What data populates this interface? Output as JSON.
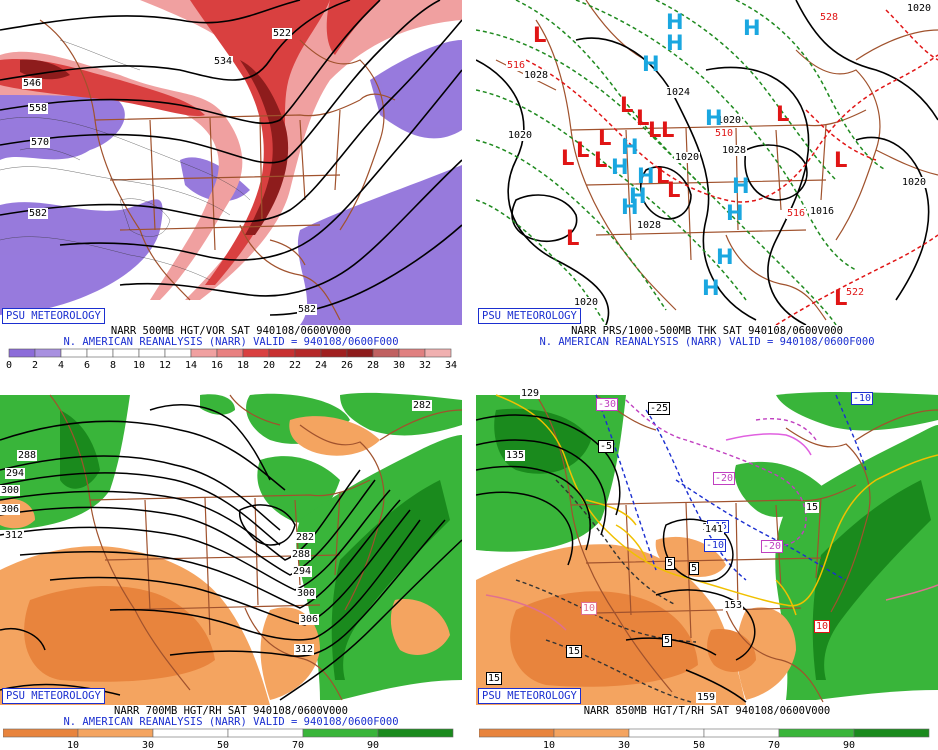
{
  "brand": "PSU METEOROLOGY",
  "source_line": "N. AMERICAN REANALYSIS (NARR) VALID = 940108/0600F000",
  "colors": {
    "vort_purple": "#8c6cd9",
    "vort_red_light": "#f0a0a0",
    "vort_red": "#d94040",
    "vort_red_dark": "#8e1c1c",
    "rh_green": "#39b53a",
    "rh_dark_green": "#1a8a1d",
    "dry_orange": "#f4a460",
    "dry_dark_orange": "#e8843d",
    "border_brown": "#a0522d",
    "caption_blue": "#1b2fd0",
    "high_cyan": "#1aa7e0",
    "low_red": "#e01515"
  },
  "panels": {
    "vort500": {
      "title": "NARR 500MB HGT/VOR SAT 940108/0600V000",
      "scale_labels": [
        "0",
        "2",
        "4",
        "6",
        "8",
        "10",
        "12",
        "14",
        "16",
        "18",
        "20",
        "22",
        "24",
        "26",
        "28",
        "30",
        "32",
        "34"
      ],
      "contour_labels": [
        "522",
        "534",
        "546",
        "558",
        "570",
        "582",
        "582"
      ]
    },
    "mslp": {
      "title": "NARR PRS/1000-500MB THK SAT 940108/0600V000",
      "highs": [
        "H",
        "H",
        "H",
        "H",
        "H",
        "H",
        "H",
        "H",
        "H",
        "H",
        "H",
        "H",
        "H",
        "H"
      ],
      "lows": [
        "L",
        "L",
        "L",
        "L",
        "L",
        "L",
        "L",
        "L",
        "L",
        "L",
        "L",
        "L",
        "L",
        "L",
        "L"
      ],
      "contour_labels": [
        "1028",
        "1020",
        "1020",
        "1024",
        "1028",
        "1020",
        "1020",
        "1028",
        "1020",
        "1020",
        "1016",
        "516",
        "510",
        "516",
        "522",
        "528"
      ]
    },
    "rh700": {
      "title": "NARR 700MB HGT/RH SAT 940108/0600V000",
      "scale_labels": [
        "10",
        "30",
        "50",
        "70",
        "90"
      ],
      "contour_labels": [
        "288",
        "294",
        "300",
        "306",
        "312",
        "282",
        "288",
        "294",
        "300",
        "306",
        "312",
        "282"
      ]
    },
    "t850": {
      "title": "NARR 850MB HGT/T/RH SAT 940108/0600V000",
      "scale_labels": [
        "10",
        "30",
        "50",
        "70",
        "90"
      ],
      "contour_labels": [
        "129",
        "135",
        "141",
        "153",
        "159",
        "15",
        "15",
        "10",
        "10",
        "5",
        "5",
        "5",
        "-5",
        "-10",
        "-10",
        "-15",
        "-20",
        "-20",
        "-25",
        "-30",
        "141",
        "15"
      ]
    }
  }
}
